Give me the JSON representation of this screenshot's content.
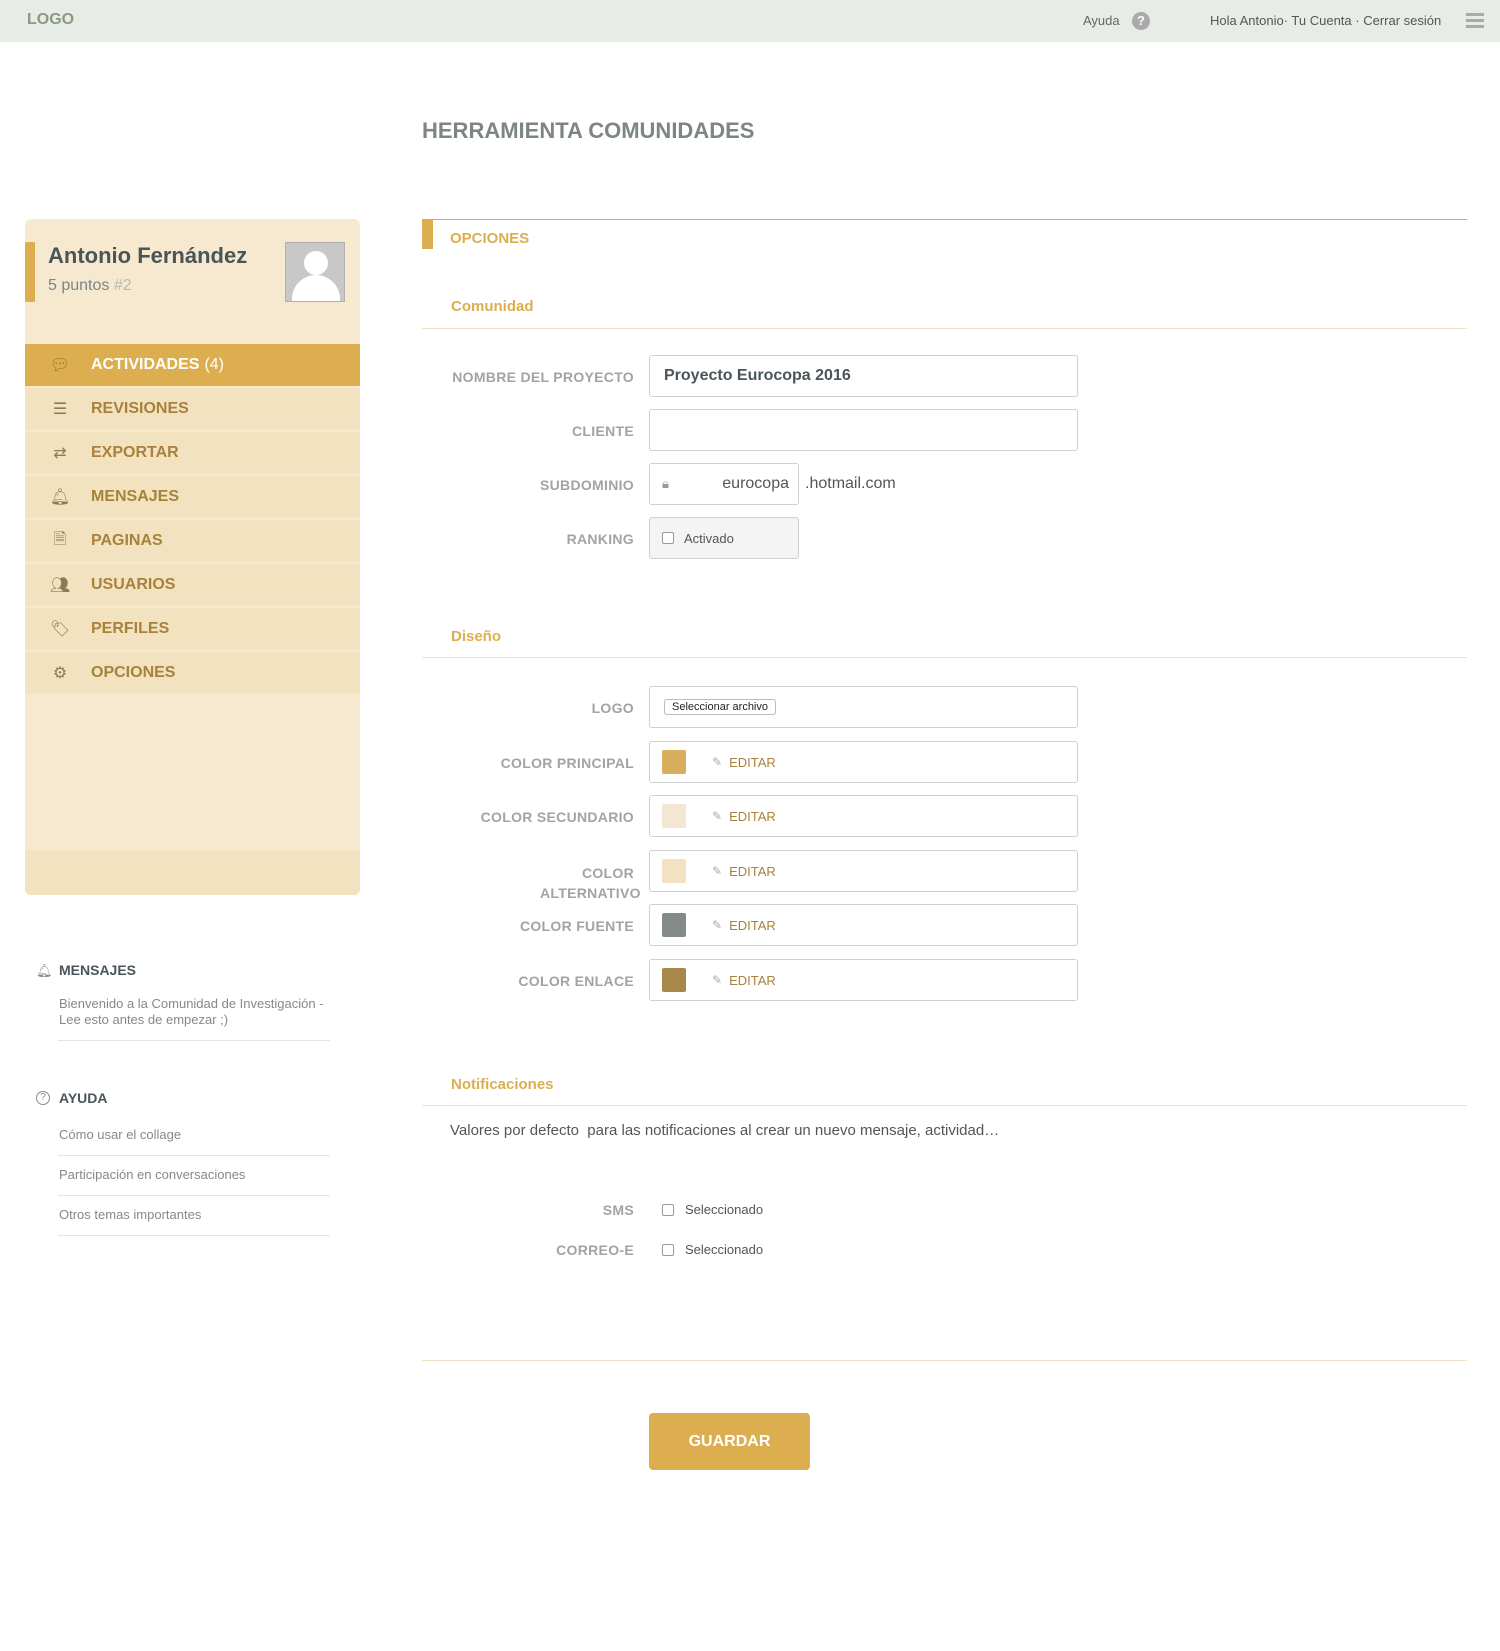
{
  "header": {
    "logo": "LOGO",
    "help": "Ayuda",
    "account": "Hola Antonio· Tu Cuenta · Cerrar sesión"
  },
  "page": {
    "title": "HERRAMIENTA COMUNIDADES"
  },
  "profile": {
    "name": "Antonio Fernández",
    "points": "5 puntos",
    "rank": "#2"
  },
  "nav": [
    {
      "label": "ACTIVIDADES",
      "count": "(4)",
      "icon": "chat-bubble-icon",
      "active": true
    },
    {
      "label": "REVISIONES",
      "icon": "list-icon"
    },
    {
      "label": "EXPORTAR",
      "icon": "exchange-icon"
    },
    {
      "label": "MENSAJES",
      "icon": "bell-icon"
    },
    {
      "label": "PAGINAS",
      "icon": "document-icon"
    },
    {
      "label": "USUARIOS",
      "icon": "users-icon"
    },
    {
      "label": "PERFILES",
      "icon": "tags-icon"
    },
    {
      "label": "OPCIONES",
      "icon": "gears-icon"
    }
  ],
  "side_messages": {
    "title": "MENSAJES",
    "items": [
      "Bienvenido a la Comunidad de Investigación - Lee esto antes de empezar ;)"
    ]
  },
  "side_help": {
    "title": "AYUDA",
    "items": [
      "Cómo usar el collage",
      "Participación en conversaciones",
      "Otros temas importantes"
    ]
  },
  "options": {
    "title": "OPCIONES",
    "community": {
      "title": "Comunidad",
      "project_label": "NOMBRE DEL PROYECTO",
      "project_value": "Proyecto Eurocopa 2016",
      "client_label": "CLIENTE",
      "client_value": "",
      "subdomain_label": "SUBDOMINIO",
      "subdomain_value": "eurocopa",
      "subdomain_suffix": ".hotmail.com",
      "ranking_label": "RANKING",
      "ranking_option": "Activado",
      "ranking_checked": false
    },
    "design": {
      "title": "Diseño",
      "logo_label": "LOGO",
      "file_button": "Seleccionar archivo",
      "edit_label": "EDITAR",
      "colors": [
        {
          "label": "COLOR PRINCIPAL",
          "color": "#d8ae5c"
        },
        {
          "label": "COLOR SECUNDARIO",
          "color": "#f3e6d2"
        },
        {
          "label": "COLOR ALTERNATIVO",
          "color": "#f2e2c2"
        },
        {
          "label": "COLOR FUENTE",
          "color": "#848a8a"
        },
        {
          "label": "COLOR ENLACE",
          "color": "#a8884a"
        }
      ]
    },
    "notifications": {
      "title": "Notificaciones",
      "description": "Valores por defecto  para las notificaciones al crear un nuevo mensaje, actividad…",
      "sms_label": "SMS",
      "email_label": "CORREO-E",
      "option": "Seleccionado",
      "sms_checked": false,
      "email_checked": false
    },
    "save": "GUARDAR"
  }
}
